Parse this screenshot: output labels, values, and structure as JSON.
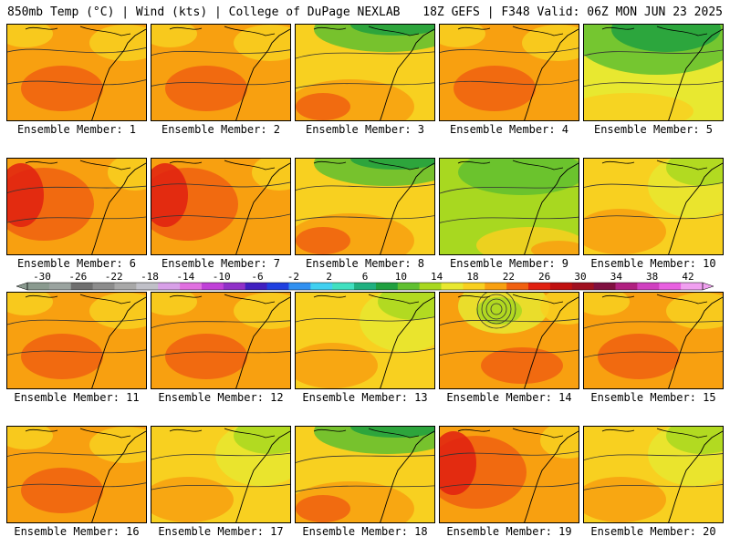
{
  "header": {
    "left": "850mb Temp (°C) | Wind (kts) | College of DuPage NEXLAB",
    "right": "18Z GEFS | F348 Valid: 06Z MON JUN 23 2025"
  },
  "colorbar": {
    "labels": [
      "-30",
      "-26",
      "-22",
      "-18",
      "-14",
      "-10",
      "-6",
      "-2",
      "2",
      "6",
      "10",
      "14",
      "18",
      "22",
      "26",
      "30",
      "34",
      "38",
      "42"
    ],
    "colors": [
      "#8a9a8f",
      "#9aa39f",
      "#6f6f6f",
      "#8c8c8c",
      "#a8a8a8",
      "#c0c0c8",
      "#d8a0e8",
      "#e070e0",
      "#c040d8",
      "#9030c8",
      "#4020c0",
      "#2040e0",
      "#3090f0",
      "#40d0f0",
      "#40e0c0",
      "#20b080",
      "#20a040",
      "#60c030",
      "#a8d820",
      "#e8e830",
      "#f8d020",
      "#f8a010",
      "#f06010",
      "#e02010",
      "#c01010",
      "#a01020",
      "#801040",
      "#b02080",
      "#d040c0",
      "#e860e0",
      "#f0a0f0"
    ],
    "unit": "°C"
  },
  "panels": [
    {
      "label": "Ensemble Member: 1",
      "row": 0,
      "col": 0,
      "scheme": "orange"
    },
    {
      "label": "Ensemble Member: 2",
      "row": 0,
      "col": 1,
      "scheme": "orange"
    },
    {
      "label": "Ensemble Member: 3",
      "row": 0,
      "col": 2,
      "scheme": "green-top"
    },
    {
      "label": "Ensemble Member: 4",
      "row": 0,
      "col": 3,
      "scheme": "orange"
    },
    {
      "label": "Ensemble Member: 5",
      "row": 0,
      "col": 4,
      "scheme": "green"
    },
    {
      "label": "Ensemble Member: 6",
      "row": 1,
      "col": 0,
      "scheme": "red"
    },
    {
      "label": "Ensemble Member: 7",
      "row": 1,
      "col": 1,
      "scheme": "red"
    },
    {
      "label": "Ensemble Member: 8",
      "row": 1,
      "col": 2,
      "scheme": "green-top"
    },
    {
      "label": "Ensemble Member: 9",
      "row": 1,
      "col": 3,
      "scheme": "lime"
    },
    {
      "label": "Ensemble Member: 10",
      "row": 1,
      "col": 4,
      "scheme": "yellow"
    },
    {
      "label": "Ensemble Member: 11",
      "row": 2,
      "col": 0,
      "scheme": "orange"
    },
    {
      "label": "Ensemble Member: 12",
      "row": 2,
      "col": 1,
      "scheme": "orange"
    },
    {
      "label": "Ensemble Member: 13",
      "row": 2,
      "col": 2,
      "scheme": "yellow"
    },
    {
      "label": "Ensemble Member: 14",
      "row": 2,
      "col": 3,
      "scheme": "low"
    },
    {
      "label": "Ensemble Member: 15",
      "row": 2,
      "col": 4,
      "scheme": "orange"
    },
    {
      "label": "Ensemble Member: 16",
      "row": 3,
      "col": 0,
      "scheme": "orange"
    },
    {
      "label": "Ensemble Member: 17",
      "row": 3,
      "col": 1,
      "scheme": "yellow"
    },
    {
      "label": "Ensemble Member: 18",
      "row": 3,
      "col": 2,
      "scheme": "green-top"
    },
    {
      "label": "Ensemble Member: 19",
      "row": 3,
      "col": 3,
      "scheme": "red"
    },
    {
      "label": "Ensemble Member: 20",
      "row": 3,
      "col": 4,
      "scheme": "yellow"
    }
  ]
}
